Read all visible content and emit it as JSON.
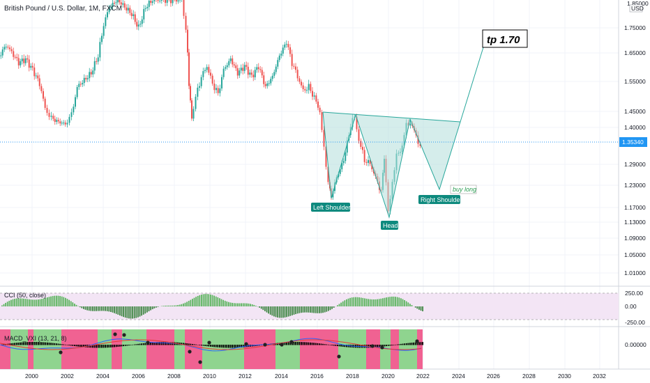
{
  "header": {
    "symbol_title": "British Pound / U.S. Dollar, 1M, FXCM",
    "currency_badge": "USD"
  },
  "price_scale": {
    "ticks": [
      "1.75000",
      "1.65000",
      "1.55000",
      "1.45000",
      "1.40000",
      "1.29000",
      "1.23000",
      "1.17000",
      "1.13000",
      "1.09000",
      "1.05000",
      "1.01000"
    ],
    "top_partial": "1.85000",
    "current_price": "1.35340"
  },
  "cci_panel": {
    "title": "CCI (50, close)",
    "ticks": [
      "250.00",
      "0.00",
      "-250.00"
    ]
  },
  "macd_panel": {
    "title": "MACD_VXI (13, 21, 8)",
    "ticks": [
      "0.00000"
    ]
  },
  "time_axis": {
    "labels": [
      "2000",
      "2002",
      "2004",
      "2006",
      "2008",
      "2010",
      "2012",
      "2014",
      "2016",
      "2018",
      "2020",
      "2022",
      "2024",
      "2026",
      "2028",
      "2030",
      "2032"
    ]
  },
  "annotations": {
    "left_shoulder": "Left Shoulder",
    "head": "Head",
    "right_shoulder": "Right Shoulder",
    "buy_long": "buy long",
    "target": "tp  1.70"
  },
  "colors": {
    "up_candle": "#26a69a",
    "down_candle": "#ef5350",
    "pattern_fill": "#b2dfdb",
    "label_bg": "#0e8a7e",
    "macd_green": "#8fd48f",
    "macd_red": "#f06292",
    "cci_band": "#f3e5f5",
    "price_line": "#2196f3"
  }
}
